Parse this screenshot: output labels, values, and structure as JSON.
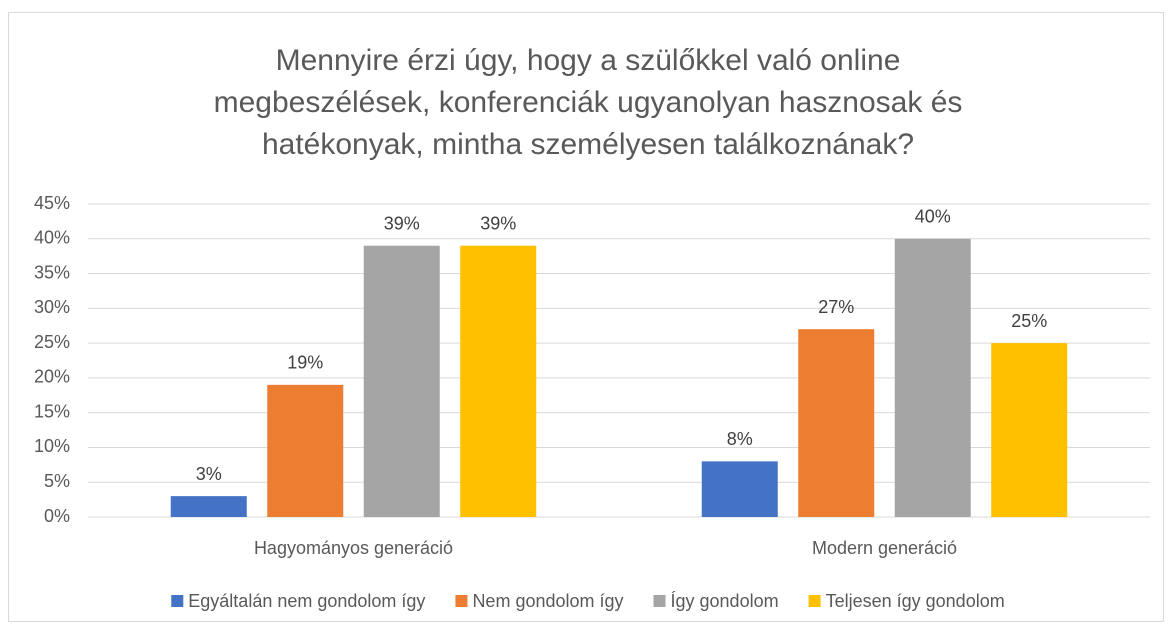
{
  "chart_data": {
    "type": "bar",
    "title": "Mennyire érzi úgy, hogy a szülőkkel való online megbeszélések, konferenciák ugyanolyan hasznosak és hatékonyak, mintha személyesen találkoznának?",
    "categories": [
      "Hagyományos generáció",
      "Modern generáció"
    ],
    "series": [
      {
        "name": "Egyáltalán nem gondolom így",
        "color": "#4472c4",
        "values": [
          3,
          8
        ],
        "value_labels": [
          "3%",
          "8%"
        ]
      },
      {
        "name": "Nem gondolom így",
        "color": "#ed7d31",
        "values": [
          19,
          27
        ],
        "value_labels": [
          "19%",
          "27%"
        ]
      },
      {
        "name": "Így gondolom",
        "color": "#a5a5a5",
        "values": [
          39,
          40
        ],
        "value_labels": [
          "39%",
          "40%"
        ]
      },
      {
        "name": "Teljesen így gondolom",
        "color": "#ffc000",
        "values": [
          39,
          25
        ],
        "value_labels": [
          "39%",
          "25%"
        ]
      }
    ],
    "ylim": [
      0,
      45
    ],
    "yticks": [
      {
        "value": 0,
        "label": "0%"
      },
      {
        "value": 5,
        "label": "5%"
      },
      {
        "value": 10,
        "label": "10%"
      },
      {
        "value": 15,
        "label": "15%"
      },
      {
        "value": 20,
        "label": "20%"
      },
      {
        "value": 25,
        "label": "25%"
      },
      {
        "value": 30,
        "label": "30%"
      },
      {
        "value": 35,
        "label": "35%"
      },
      {
        "value": 40,
        "label": "40%"
      },
      {
        "value": 45,
        "label": "45%"
      }
    ],
    "grid": true,
    "legend": "bottom"
  }
}
